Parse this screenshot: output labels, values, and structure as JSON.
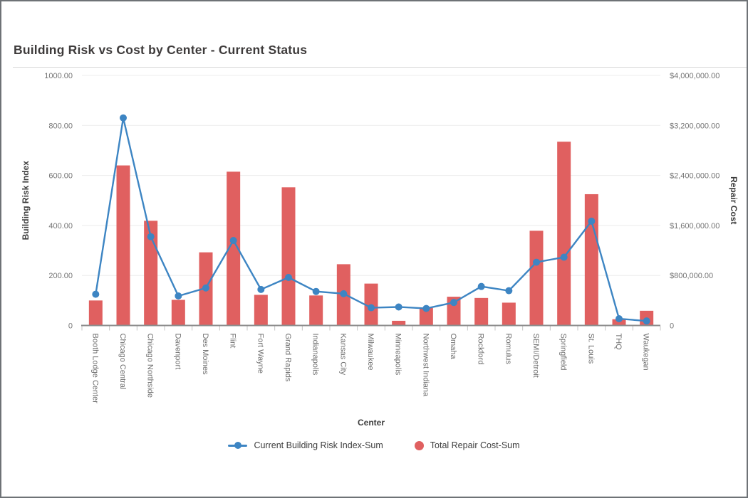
{
  "page": {
    "title": "Building Risk vs Cost by Center - Current Status"
  },
  "chart_data": {
    "type": "combo",
    "title": "Building Risk vs Cost by Center - Current Status",
    "xlabel": "Center",
    "grid": true,
    "legend_position": "bottom",
    "categories": [
      "Booth Lodge Center",
      "Chicago Central",
      "Chicago Northside",
      "Davenport",
      "Des Moines",
      "Flint",
      "Fort Wayne",
      "Grand Rapids",
      "Indianapolis",
      "Kansas City",
      "Milwaukee",
      "Minneapolis",
      "Northwest Indiana",
      "Omaha",
      "Rockford",
      "Romulus",
      "SEMI/Detroit",
      "Springfield",
      "St. Louis",
      "THQ",
      "Waukegan"
    ],
    "series": [
      {
        "name": "Current Building Risk Index-Sum",
        "type": "line",
        "axis": "left",
        "color": "#3d85c3",
        "values": [
          125,
          830,
          355,
          118,
          150,
          340,
          144,
          192,
          136,
          127,
          71,
          74,
          68,
          92,
          156,
          139,
          253,
          273,
          417,
          27,
          18
        ]
      },
      {
        "name": "Total Repair Cost-Sum",
        "type": "bar",
        "axis": "right",
        "color": "#e06060",
        "values": [
          400000,
          2560000,
          1675000,
          410000,
          1170000,
          2460000,
          490000,
          2210000,
          480000,
          980000,
          670000,
          75000,
          280000,
          460000,
          440000,
          365000,
          1515000,
          2940000,
          2100000,
          100000,
          235000
        ]
      }
    ],
    "left_axis": {
      "label": "Building Risk Index",
      "min": 0,
      "max": 1000,
      "ticks": [
        0,
        200,
        400,
        600,
        800,
        1000
      ],
      "tick_labels": [
        "0",
        "200.00",
        "400.00",
        "600.00",
        "800.00",
        "1000.00"
      ]
    },
    "right_axis": {
      "label": "Repair Cost",
      "min": 0,
      "max": 4000000,
      "ticks": [
        0,
        800000,
        1600000,
        2400000,
        3200000,
        4000000
      ],
      "tick_labels": [
        "0",
        "$800,000.00",
        "$1,600,000.00",
        "$2,400,000.00",
        "$3,200,000.00",
        "$4,000,000.00"
      ]
    },
    "colors": {
      "gridline": "#ececec",
      "axis_line": "#8c8c8c",
      "tick_mark": "#c4c4c4",
      "tick_text": "#757575",
      "axis_title_text": "#3d3d3d"
    }
  }
}
